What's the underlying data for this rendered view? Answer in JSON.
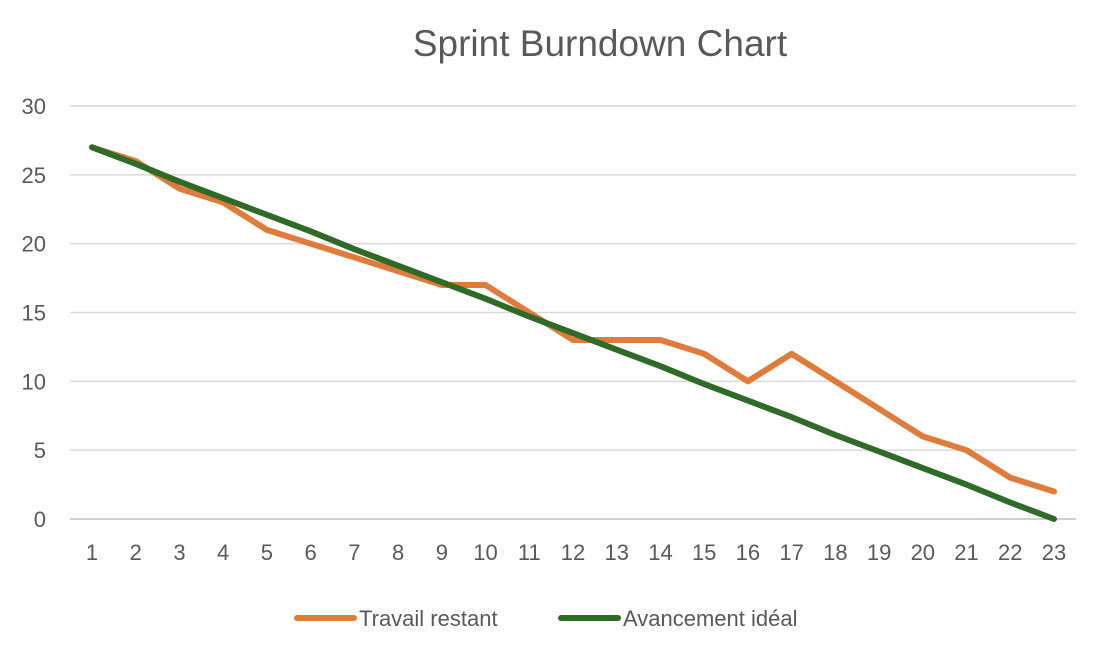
{
  "chart_data": {
    "type": "line",
    "title": "Sprint Burndown Chart",
    "xlabel": "",
    "ylabel": "",
    "x": [
      1,
      2,
      3,
      4,
      5,
      6,
      7,
      8,
      9,
      10,
      11,
      12,
      13,
      14,
      15,
      16,
      17,
      18,
      19,
      20,
      21,
      22,
      23
    ],
    "ylim": [
      0,
      30
    ],
    "yticks": [
      0,
      5,
      10,
      15,
      20,
      25,
      30
    ],
    "grid": true,
    "legend_position": "bottom",
    "series": [
      {
        "name": "Travail restant",
        "color": "#E07B39",
        "values": [
          27,
          26,
          24,
          23,
          21,
          20,
          19,
          18,
          17,
          17,
          15,
          13,
          13,
          13,
          12,
          10,
          12,
          10,
          8,
          6,
          5,
          3,
          2
        ]
      },
      {
        "name": "Avancement idéal",
        "color": "#2E6B26",
        "values": [
          27,
          25.8,
          24.5,
          23.3,
          22.1,
          20.9,
          19.6,
          18.4,
          17.2,
          16,
          14.7,
          13.5,
          12.3,
          11.1,
          9.8,
          8.6,
          7.4,
          6.1,
          4.9,
          3.7,
          2.5,
          1.2,
          0
        ]
      }
    ]
  }
}
